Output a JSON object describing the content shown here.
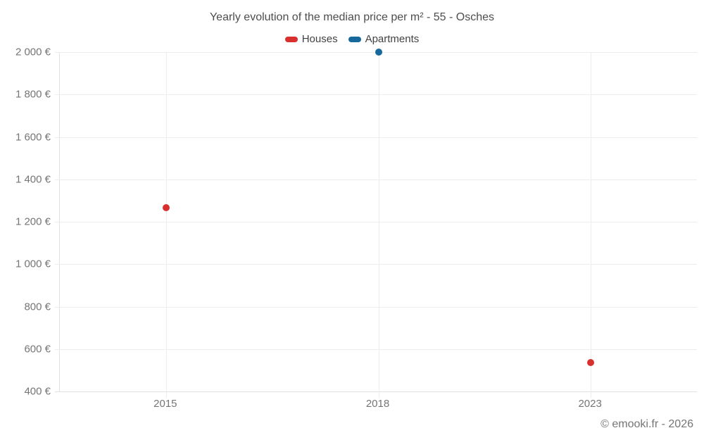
{
  "footer": {
    "credit": "© emooki.fr - 2026"
  },
  "chart_data": {
    "type": "scatter",
    "title": "Yearly evolution of the median price per m² - 55 - Osches",
    "categories": [
      "2015",
      "2018",
      "2023"
    ],
    "series": [
      {
        "name": "Houses",
        "color": "#d7302e",
        "points": [
          {
            "category": "2015",
            "value": 1265
          },
          {
            "category": "2023",
            "value": 535
          }
        ]
      },
      {
        "name": "Apartments",
        "color": "#17689c",
        "points": [
          {
            "category": "2018",
            "value": 2000
          }
        ]
      }
    ],
    "ylim": [
      400,
      2000
    ],
    "ytick_step": 200,
    "ytick_values": [
      2000,
      1800,
      1600,
      1400,
      1200,
      1000,
      800,
      600,
      400
    ],
    "ytick_labels": [
      "2 000 €",
      "1 800 €",
      "1 600 €",
      "1 400 €",
      "1 200 €",
      "1 000 €",
      "800 €",
      "600 €",
      "400 €"
    ],
    "xlabel": "",
    "ylabel": "",
    "grid": true,
    "legend_position": "top",
    "gridline_color": "#ededed",
    "axis_line_color": "#e0e0e0",
    "tick_text_color": "#757575"
  }
}
